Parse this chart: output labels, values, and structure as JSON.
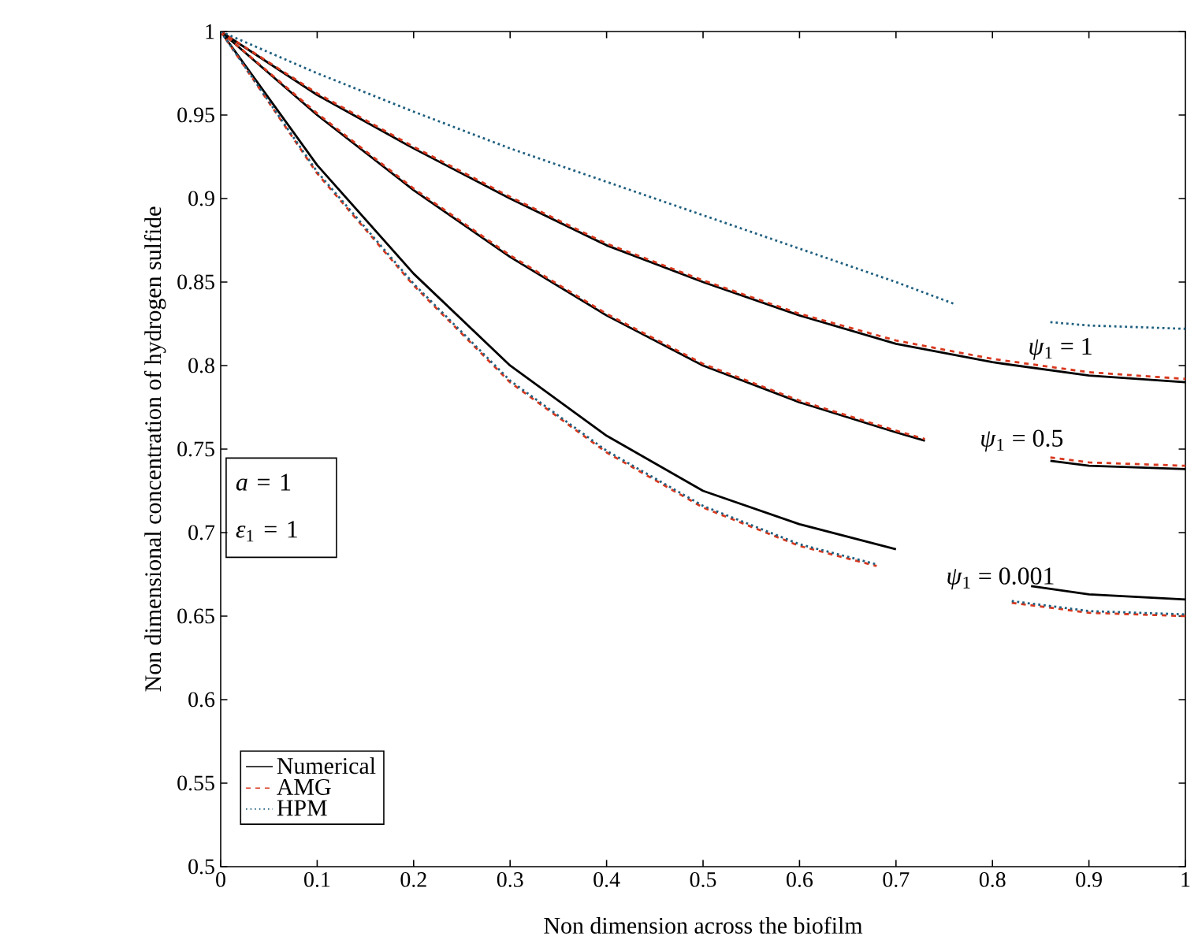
{
  "chart_data": {
    "type": "line",
    "xlabel": "Non dimension across the biofilm",
    "ylabel": "Non dimensional concentration of hydrogen sulfide",
    "xlim": [
      0,
      1
    ],
    "ylim": [
      0.5,
      1
    ],
    "xticks": [
      0,
      0.1,
      0.2,
      0.3,
      0.4,
      0.5,
      0.6,
      0.7,
      0.8,
      0.9,
      1
    ],
    "yticks": [
      0.5,
      0.55,
      0.6,
      0.65,
      0.7,
      0.75,
      0.8,
      0.85,
      0.9,
      0.95,
      1
    ],
    "grid": false,
    "legend": "bottom left",
    "marker": "none",
    "series": [
      {
        "name": "Numerical",
        "color": "#000000",
        "line_style": "solid",
        "x": [
          0,
          0.1,
          0.2,
          0.3,
          0.4,
          0.5,
          0.6,
          0.7,
          0.8,
          0.9,
          1
        ],
        "values": [
          1,
          0.962,
          0.93,
          0.9,
          0.872,
          0.85,
          0.83,
          0.813,
          0.802,
          0.794,
          0.79
        ]
      },
      {
        "name": "AMG",
        "color": "#d9381e",
        "line_style": "dashed",
        "x": [
          0,
          0.1,
          0.2,
          0.3,
          0.4,
          0.5,
          0.6,
          0.7,
          0.8,
          0.9,
          1
        ],
        "values": [
          1,
          0.963,
          0.931,
          0.901,
          0.873,
          0.851,
          0.831,
          0.815,
          0.804,
          0.796,
          0.792
        ]
      },
      {
        "name": "HPM",
        "color": "#1f5f7f",
        "line_style": "dotted",
        "x": [
          0,
          0.1,
          0.2,
          0.3,
          0.4,
          0.5,
          0.6,
          0.7,
          0.76,
          0.8,
          0.86,
          0.9,
          1
        ],
        "values": [
          1,
          0.975,
          0.952,
          0.93,
          0.91,
          0.89,
          0.87,
          0.85,
          0.837,
          null,
          0.826,
          0.824,
          0.822
        ]
      },
      {
        "color": "#000000",
        "line_style": "solid",
        "x": [
          0,
          0.1,
          0.2,
          0.3,
          0.4,
          0.5,
          0.6,
          0.7,
          0.73,
          0.8,
          0.86,
          0.9,
          1
        ],
        "values": [
          1,
          0.95,
          0.905,
          0.865,
          0.83,
          0.8,
          0.778,
          0.76,
          0.755,
          null,
          0.743,
          0.74,
          0.738
        ]
      },
      {
        "color": "#d9381e",
        "line_style": "dashed",
        "x": [
          0,
          0.1,
          0.2,
          0.3,
          0.4,
          0.5,
          0.6,
          0.7,
          0.73,
          0.8,
          0.86,
          0.9,
          1
        ],
        "values": [
          1,
          0.951,
          0.906,
          0.866,
          0.831,
          0.801,
          0.779,
          0.761,
          0.756,
          null,
          0.745,
          0.742,
          0.74
        ]
      },
      {
        "color": "#000000",
        "line_style": "solid",
        "x": [
          0,
          0.1,
          0.2,
          0.3,
          0.4,
          0.5,
          0.6,
          0.7,
          0.77,
          0.84,
          0.9,
          1
        ],
        "values": [
          1,
          0.92,
          0.855,
          0.8,
          0.758,
          0.725,
          0.705,
          0.69,
          null,
          0.668,
          0.663,
          0.66
        ]
      },
      {
        "color": "#d9381e",
        "line_style": "dashed",
        "x": [
          0,
          0.1,
          0.2,
          0.3,
          0.4,
          0.5,
          0.6,
          0.68,
          0.75,
          0.82,
          0.9,
          1
        ],
        "values": [
          1,
          0.915,
          0.848,
          0.79,
          0.748,
          0.715,
          0.692,
          0.68,
          null,
          0.658,
          0.652,
          0.65
        ]
      },
      {
        "color": "#1f5f7f",
        "line_style": "dotted",
        "x": [
          0,
          0.1,
          0.2,
          0.3,
          0.4,
          0.5,
          0.6,
          0.68,
          0.75,
          0.82,
          0.9,
          1
        ],
        "values": [
          1,
          0.916,
          0.849,
          0.791,
          0.749,
          0.716,
          0.693,
          0.681,
          null,
          0.659,
          0.653,
          0.651
        ]
      }
    ],
    "annotations": [
      "*ψ*$_{1}$ = 1",
      "*ψ*$_{1}$ = 0.5",
      "*ψ*$_{1}$ = 0.001",
      "*a* = 1",
      "*ε*$_{1}$ = 1"
    ]
  }
}
